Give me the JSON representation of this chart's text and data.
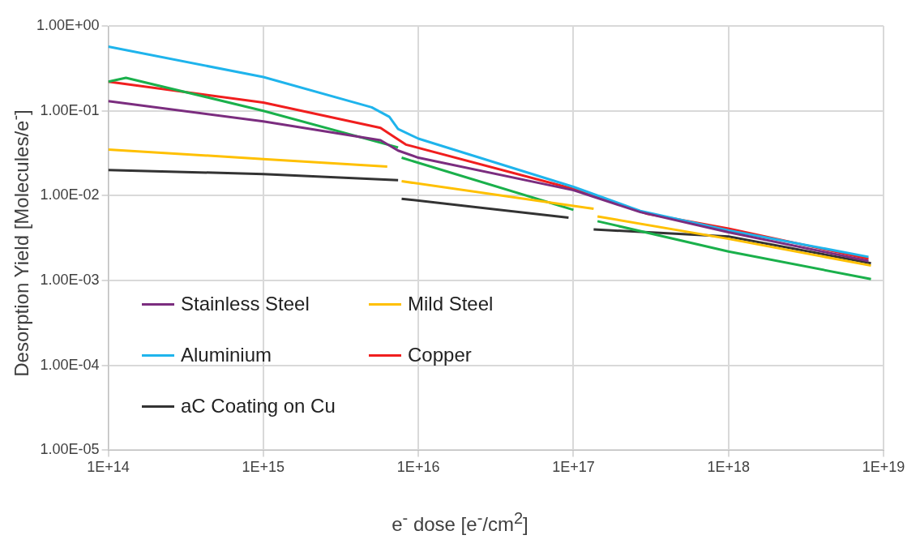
{
  "chart_data": {
    "type": "line",
    "xlabel": "e$^{-}$ dose [e$^{-}$/cm$^{2}$]",
    "ylabel": "Desorption Yield [Molecules/e$^{-}$]",
    "log": "xy",
    "grid": true,
    "legend": "bottom left",
    "marker": "none",
    "line_style": "solid",
    "xlim": [
      100000000000000.0,
      1e+19
    ],
    "xticks": [
      {
        "value": 100000000000000.0,
        "label": "1E+14"
      },
      {
        "value": 1000000000000000.0,
        "label": "1E+15"
      },
      {
        "value": 1e+16,
        "label": "1E+16"
      },
      {
        "value": 1e+17,
        "label": "1E+17"
      },
      {
        "value": 1e+18,
        "label": "1E+18"
      },
      {
        "value": 1e+19,
        "label": "1E+19"
      }
    ],
    "ylim": [
      1e-05,
      1
    ],
    "yticks": [
      {
        "value": 1e-05,
        "label": "1.00E-05"
      },
      {
        "value": 0.0001,
        "label": "1.00E-04"
      },
      {
        "value": 0.001,
        "label": "1.00E-03"
      },
      {
        "value": 0.01,
        "label": "1.00E-02"
      },
      {
        "value": 0.1,
        "label": "1.00E-01"
      },
      {
        "value": 1,
        "label": "1.00E+00"
      }
    ],
    "series": [
      {
        "name": "Stainless Steel",
        "color": "#7b2d7f",
        "x": [
          100000000000000.0,
          1000000000000000.0,
          5700000000000000.0,
          7400000000000000.0,
          1e+16,
          1e+17,
          2.7e+17,
          1e+18,
          8e+18
        ],
        "values": [
          0.13,
          0.075,
          0.045,
          0.034,
          0.028,
          0.0116,
          0.0064,
          0.0037,
          0.0017
        ]
      },
      {
        "name": "Mild Steel",
        "color": "#ffc000",
        "x": [
          100000000000000.0,
          1000000000000000.0,
          6300000000000000.0,
          7000000000000000.0,
          7800000000000000.0,
          1.35e+17,
          1.4e+17,
          1.43e+17,
          1e+18,
          8.3e+18
        ],
        "values": [
          0.035,
          0.027,
          0.022,
          null,
          0.0148,
          0.007,
          null,
          0.0057,
          0.0031,
          0.0015
        ]
      },
      {
        "name": "Aluminium",
        "color": "#1fb4ec",
        "x": [
          100000000000000.0,
          1000000000000000.0,
          5000000000000000.0,
          6500000000000000.0,
          7400000000000000.0,
          1e+16,
          1e+17,
          2.7e+17,
          1e+18,
          8e+18
        ],
        "values": [
          0.57,
          0.25,
          0.11,
          0.085,
          0.061,
          0.047,
          0.0127,
          0.0066,
          0.0039,
          0.0019
        ]
      },
      {
        "color": "#1ab04b",
        "x": [
          100000000000000.0,
          130000000000000.0,
          1000000000000000.0,
          7400000000000000.0,
          7600000000000000.0,
          7800000000000000.0,
          1e+17,
          1.35e+17,
          1.43e+17,
          1e+18,
          8.3e+18
        ],
        "values": [
          0.22,
          0.245,
          0.1,
          0.037,
          null,
          0.028,
          0.0068,
          null,
          0.005,
          0.0022,
          0.00104
        ]
      },
      {
        "name": "Copper",
        "color": "#f01e1e",
        "x": [
          100000000000000.0,
          1000000000000000.0,
          5700000000000000.0,
          6900000000000000.0,
          8300000000000000.0,
          1e+17,
          3e+17,
          1e+18,
          8e+18
        ],
        "values": [
          0.22,
          0.125,
          0.063,
          0.05,
          0.04,
          0.012,
          0.0061,
          0.0041,
          0.0018
        ]
      },
      {
        "name": "aC Coating on Cu",
        "color": "#333333",
        "x": [
          100000000000000.0,
          1000000000000000.0,
          7400000000000000.0,
          7600000000000000.0,
          7800000000000000.0,
          9.3e+16,
          1.1e+17,
          1.35e+17,
          1e+18,
          8.3e+18
        ],
        "values": [
          0.02,
          0.018,
          0.0152,
          null,
          0.0092,
          0.0055,
          null,
          0.004,
          0.0033,
          0.0016
        ]
      }
    ]
  }
}
